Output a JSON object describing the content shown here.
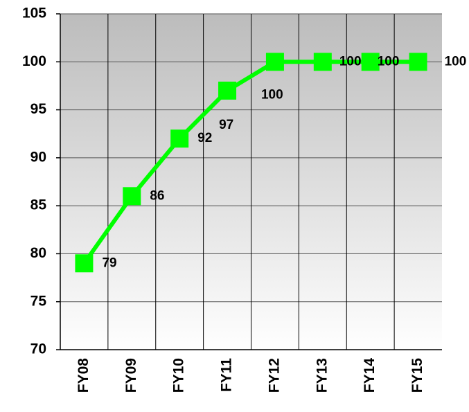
{
  "chart_data": {
    "type": "line",
    "categories": [
      "FY08",
      "FY09",
      "FY10",
      "FY11",
      "FY12",
      "FY13",
      "FY14",
      "FY15"
    ],
    "values": [
      79,
      86,
      92,
      97,
      100,
      100,
      100,
      100
    ],
    "color": "#00ff00",
    "ylim": [
      70,
      105
    ],
    "yticks": [
      70,
      75,
      80,
      85,
      90,
      95,
      100,
      105
    ],
    "grid": true
  }
}
